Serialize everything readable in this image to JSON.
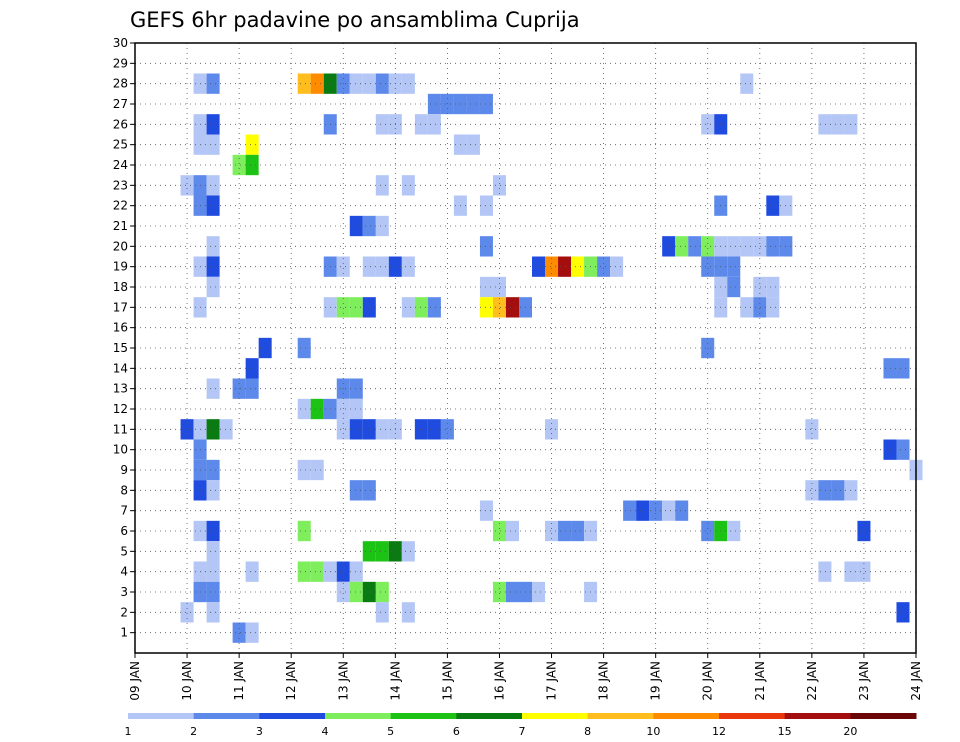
{
  "chart_data": {
    "type": "heatmap",
    "title": "GEFS 6hr padavine po ansamblima Cuprija",
    "xlabel": "",
    "ylabel": "",
    "x_unit": "6h steps from 09 JAN 00Z",
    "x_range": [
      0,
      60
    ],
    "x_tick_labels": [
      "09 JAN",
      "10 JAN",
      "11 JAN",
      "12 JAN",
      "13 JAN",
      "14 JAN",
      "15 JAN",
      "16 JAN",
      "17 JAN",
      "18 JAN",
      "19 JAN",
      "20 JAN",
      "21 JAN",
      "22 JAN",
      "23 JAN",
      "24 JAN"
    ],
    "y_range": [
      0,
      30
    ],
    "y_tick_labels": [
      "1",
      "2",
      "3",
      "4",
      "5",
      "6",
      "7",
      "8",
      "9",
      "10",
      "11",
      "12",
      "13",
      "14",
      "15",
      "16",
      "17",
      "18",
      "19",
      "20",
      "21",
      "22",
      "23",
      "24",
      "25",
      "26",
      "27",
      "28",
      "29",
      "30"
    ],
    "grid": "dotted",
    "colorbar": {
      "levels": [
        "1",
        "2",
        "3",
        "4",
        "5",
        "6",
        "7",
        "8",
        "10",
        "12",
        "15",
        "20"
      ],
      "colors": [
        "#b3c6f5",
        "#5d89ea",
        "#1f4bdf",
        "#7eee5c",
        "#1cc214",
        "#0a7a12",
        "#ffff00",
        "#ffbe1e",
        "#ff8c00",
        "#e8380c",
        "#a40e0e",
        "#6a0606"
      ]
    },
    "cells": [
      [
        28,
        5,
        1
      ],
      [
        28,
        6,
        2
      ],
      [
        28,
        13,
        8
      ],
      [
        28,
        14,
        9
      ],
      [
        28,
        15,
        6
      ],
      [
        28,
        16,
        2
      ],
      [
        28,
        17,
        1
      ],
      [
        28,
        18,
        1
      ],
      [
        28,
        19,
        2
      ],
      [
        28,
        20,
        1
      ],
      [
        28,
        21,
        1
      ],
      [
        28,
        47,
        1
      ],
      [
        27,
        23,
        2
      ],
      [
        27,
        24,
        2
      ],
      [
        27,
        25,
        2
      ],
      [
        27,
        26,
        2
      ],
      [
        27,
        27,
        2
      ],
      [
        26,
        5,
        1
      ],
      [
        26,
        6,
        3
      ],
      [
        26,
        15,
        2
      ],
      [
        26,
        19,
        1
      ],
      [
        26,
        20,
        1
      ],
      [
        26,
        22,
        1
      ],
      [
        26,
        23,
        1
      ],
      [
        26,
        44,
        1
      ],
      [
        26,
        45,
        3
      ],
      [
        26,
        53,
        1
      ],
      [
        26,
        54,
        1
      ],
      [
        26,
        55,
        1
      ],
      [
        25,
        5,
        1
      ],
      [
        25,
        6,
        1
      ],
      [
        25,
        9,
        7
      ],
      [
        25,
        25,
        1
      ],
      [
        25,
        26,
        1
      ],
      [
        24,
        8,
        4
      ],
      [
        24,
        9,
        5
      ],
      [
        23,
        4,
        1
      ],
      [
        23,
        5,
        2
      ],
      [
        23,
        6,
        1
      ],
      [
        23,
        19,
        1
      ],
      [
        23,
        21,
        1
      ],
      [
        23,
        28,
        1
      ],
      [
        22,
        5,
        2
      ],
      [
        22,
        6,
        3
      ],
      [
        22,
        25,
        1
      ],
      [
        22,
        27,
        1
      ],
      [
        22,
        45,
        2
      ],
      [
        22,
        49,
        3
      ],
      [
        22,
        50,
        1
      ],
      [
        21,
        17,
        3
      ],
      [
        21,
        18,
        2
      ],
      [
        21,
        19,
        1
      ],
      [
        20,
        6,
        1
      ],
      [
        20,
        27,
        2
      ],
      [
        20,
        41,
        3
      ],
      [
        20,
        42,
        4
      ],
      [
        20,
        43,
        2
      ],
      [
        20,
        44,
        4
      ],
      [
        20,
        45,
        1
      ],
      [
        20,
        46,
        1
      ],
      [
        20,
        47,
        1
      ],
      [
        20,
        48,
        1
      ],
      [
        20,
        49,
        2
      ],
      [
        20,
        50,
        2
      ],
      [
        19,
        5,
        1
      ],
      [
        19,
        6,
        3
      ],
      [
        19,
        15,
        2
      ],
      [
        19,
        16,
        1
      ],
      [
        19,
        18,
        1
      ],
      [
        19,
        19,
        1
      ],
      [
        19,
        20,
        3
      ],
      [
        19,
        21,
        1
      ],
      [
        19,
        31,
        3
      ],
      [
        19,
        32,
        9
      ],
      [
        19,
        33,
        11
      ],
      [
        19,
        34,
        7
      ],
      [
        19,
        35,
        4
      ],
      [
        19,
        36,
        2
      ],
      [
        19,
        37,
        1
      ],
      [
        19,
        44,
        2
      ],
      [
        19,
        45,
        2
      ],
      [
        19,
        46,
        2
      ],
      [
        18,
        6,
        1
      ],
      [
        18,
        27,
        1
      ],
      [
        18,
        28,
        1
      ],
      [
        18,
        45,
        1
      ],
      [
        18,
        46,
        2
      ],
      [
        18,
        48,
        1
      ],
      [
        18,
        49,
        1
      ],
      [
        17,
        5,
        1
      ],
      [
        17,
        15,
        1
      ],
      [
        17,
        16,
        4
      ],
      [
        17,
        17,
        4
      ],
      [
        17,
        18,
        3
      ],
      [
        17,
        21,
        1
      ],
      [
        17,
        22,
        4
      ],
      [
        17,
        23,
        2
      ],
      [
        17,
        27,
        7
      ],
      [
        17,
        28,
        8
      ],
      [
        17,
        29,
        11
      ],
      [
        17,
        30,
        2
      ],
      [
        17,
        45,
        1
      ],
      [
        17,
        47,
        1
      ],
      [
        17,
        48,
        2
      ],
      [
        17,
        49,
        1
      ],
      [
        15,
        10,
        3
      ],
      [
        15,
        13,
        2
      ],
      [
        15,
        44,
        2
      ],
      [
        14,
        9,
        3
      ],
      [
        14,
        58,
        2
      ],
      [
        14,
        59,
        2
      ],
      [
        13,
        6,
        1
      ],
      [
        13,
        8,
        2
      ],
      [
        13,
        9,
        2
      ],
      [
        13,
        16,
        2
      ],
      [
        13,
        17,
        2
      ],
      [
        12,
        13,
        1
      ],
      [
        12,
        14,
        5
      ],
      [
        12,
        15,
        2
      ],
      [
        12,
        16,
        1
      ],
      [
        12,
        17,
        1
      ],
      [
        11,
        4,
        3
      ],
      [
        11,
        5,
        1
      ],
      [
        11,
        6,
        6
      ],
      [
        11,
        7,
        1
      ],
      [
        11,
        16,
        1
      ],
      [
        11,
        17,
        3
      ],
      [
        11,
        18,
        3
      ],
      [
        11,
        19,
        1
      ],
      [
        11,
        20,
        1
      ],
      [
        11,
        22,
        3
      ],
      [
        11,
        23,
        3
      ],
      [
        11,
        24,
        2
      ],
      [
        11,
        32,
        1
      ],
      [
        11,
        52,
        1
      ],
      [
        10,
        5,
        2
      ],
      [
        10,
        58,
        3
      ],
      [
        10,
        59,
        2
      ],
      [
        9,
        5,
        2
      ],
      [
        9,
        6,
        2
      ],
      [
        9,
        13,
        1
      ],
      [
        9,
        14,
        1
      ],
      [
        9,
        60,
        1
      ],
      [
        8,
        5,
        3
      ],
      [
        8,
        6,
        1
      ],
      [
        8,
        17,
        2
      ],
      [
        8,
        18,
        2
      ],
      [
        8,
        52,
        1
      ],
      [
        8,
        53,
        2
      ],
      [
        8,
        54,
        2
      ],
      [
        8,
        55,
        1
      ],
      [
        7,
        27,
        1
      ],
      [
        7,
        38,
        2
      ],
      [
        7,
        39,
        3
      ],
      [
        7,
        40,
        2
      ],
      [
        7,
        41,
        1
      ],
      [
        7,
        42,
        2
      ],
      [
        6,
        5,
        1
      ],
      [
        6,
        6,
        3
      ],
      [
        6,
        13,
        4
      ],
      [
        6,
        28,
        4
      ],
      [
        6,
        29,
        1
      ],
      [
        6,
        32,
        1
      ],
      [
        6,
        33,
        2
      ],
      [
        6,
        34,
        2
      ],
      [
        6,
        35,
        1
      ],
      [
        6,
        44,
        2
      ],
      [
        6,
        45,
        5
      ],
      [
        6,
        46,
        1
      ],
      [
        6,
        56,
        3
      ],
      [
        5,
        6,
        1
      ],
      [
        5,
        18,
        5
      ],
      [
        5,
        19,
        5
      ],
      [
        5,
        20,
        6
      ],
      [
        5,
        21,
        1
      ],
      [
        4,
        5,
        1
      ],
      [
        4,
        6,
        1
      ],
      [
        4,
        9,
        1
      ],
      [
        4,
        13,
        4
      ],
      [
        4,
        14,
        4
      ],
      [
        4,
        15,
        1
      ],
      [
        4,
        16,
        3
      ],
      [
        4,
        17,
        1
      ],
      [
        4,
        53,
        1
      ],
      [
        4,
        55,
        1
      ],
      [
        4,
        56,
        1
      ],
      [
        3,
        5,
        2
      ],
      [
        3,
        6,
        2
      ],
      [
        3,
        16,
        1
      ],
      [
        3,
        17,
        4
      ],
      [
        3,
        18,
        6
      ],
      [
        3,
        19,
        4
      ],
      [
        3,
        28,
        4
      ],
      [
        3,
        29,
        2
      ],
      [
        3,
        30,
        2
      ],
      [
        3,
        31,
        1
      ],
      [
        3,
        35,
        1
      ],
      [
        2,
        4,
        1
      ],
      [
        2,
        6,
        1
      ],
      [
        2,
        19,
        1
      ],
      [
        2,
        21,
        1
      ],
      [
        2,
        59,
        3
      ],
      [
        1,
        8,
        2
      ],
      [
        1,
        9,
        1
      ]
    ]
  }
}
